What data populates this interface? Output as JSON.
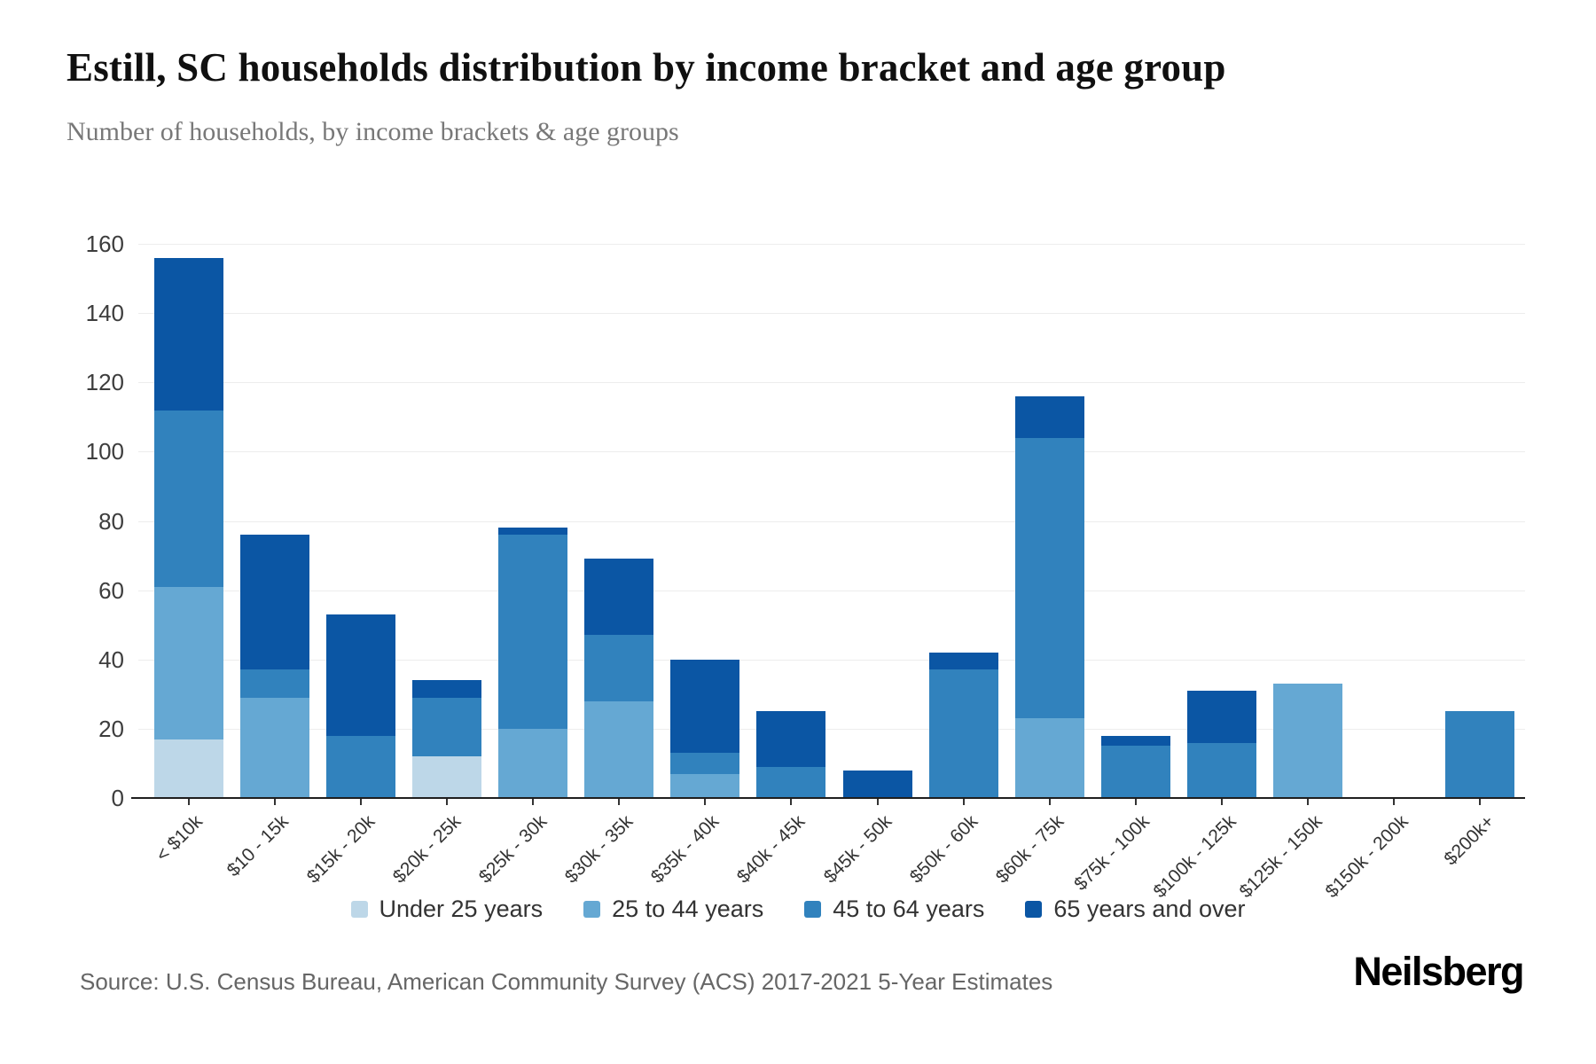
{
  "header": {
    "title": "Estill, SC households distribution by income bracket and age group",
    "subtitle": "Number of households, by income brackets & age groups"
  },
  "footer": {
    "source": "Source: U.S. Census Bureau, American Community Survey (ACS) 2017-2021 5-Year Estimates",
    "brand": "Neilsberg"
  },
  "chart_data": {
    "type": "bar",
    "stacked": true,
    "title": "Estill, SC households distribution by income bracket and age group",
    "xlabel": "",
    "ylabel": "Number of households",
    "categories": [
      "< $10k",
      "$10 - 15k",
      "$15k - 20k",
      "$20k - 25k",
      "$25k - 30k",
      "$30k - 35k",
      "$35k - 40k",
      "$40k - 45k",
      "$45k - 50k",
      "$50k - 60k",
      "$60k - 75k",
      "$75k - 100k",
      "$100k - 125k",
      "$125k - 150k",
      "$150k - 200k",
      "$200k+"
    ],
    "series": [
      {
        "name": "Under 25 years",
        "color": "#bdd7e8",
        "values": [
          17,
          0,
          0,
          12,
          0,
          0,
          0,
          0,
          0,
          0,
          0,
          0,
          0,
          0,
          0,
          0
        ]
      },
      {
        "name": "25 to 44 years",
        "color": "#65a8d3",
        "values": [
          44,
          29,
          0,
          0,
          20,
          28,
          7,
          0,
          0,
          0,
          23,
          0,
          0,
          33,
          0,
          0
        ]
      },
      {
        "name": "45 to 64 years",
        "color": "#3182bd",
        "values": [
          51,
          8,
          18,
          17,
          56,
          19,
          6,
          9,
          0,
          37,
          81,
          15,
          16,
          0,
          0,
          25
        ]
      },
      {
        "name": "65 years and over",
        "color": "#0b56a4",
        "values": [
          44,
          39,
          35,
          5,
          2,
          22,
          27,
          16,
          8,
          5,
          12,
          3,
          15,
          0,
          0,
          0
        ]
      }
    ],
    "totals": [
      156,
      76,
      53,
      34,
      78,
      69,
      40,
      25,
      8,
      42,
      116,
      18,
      31,
      33,
      0,
      25
    ],
    "ylim": [
      0,
      160
    ],
    "ytick_step": 20,
    "yticks": [
      0,
      20,
      40,
      60,
      80,
      100,
      120,
      140,
      160
    ],
    "grid": true,
    "legend_position": "bottom"
  }
}
